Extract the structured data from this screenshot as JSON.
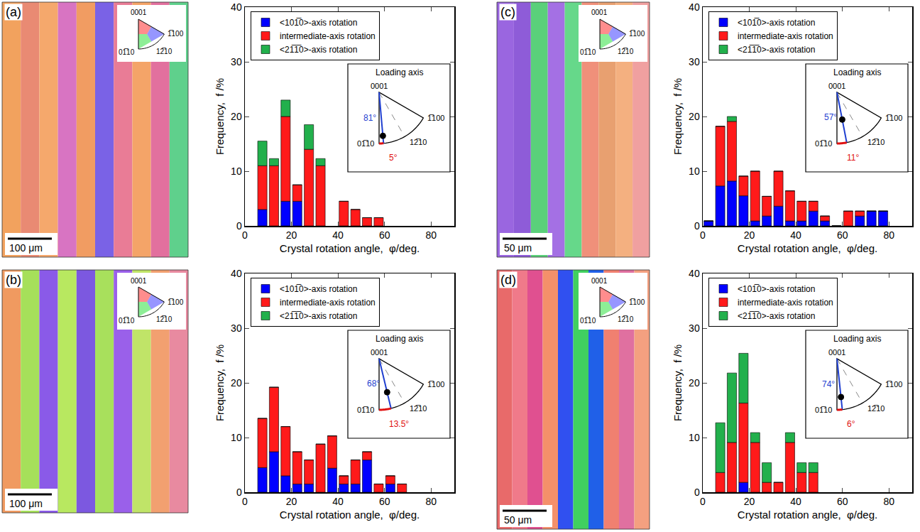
{
  "chart_data": [
    {
      "panel": "(a)",
      "type": "bar",
      "stacked": true,
      "grid": false,
      "legend": "upper left",
      "x_label": "Crystal rotation angle,  φ/deg.",
      "y_label": "Frequency,  f /%",
      "xlim": [
        0,
        90
      ],
      "xticks": [
        0,
        20,
        40,
        60,
        80
      ],
      "ylim": [
        0,
        40
      ],
      "yticks": [
        0,
        10,
        20,
        30,
        40
      ],
      "x": [
        7.5,
        12.5,
        17.5,
        22.5,
        27.5,
        32.5,
        42.5,
        47.5,
        52.5,
        57.5
      ],
      "series": [
        {
          "name": "<101̅0>-axis rotation",
          "color": "#0000ff",
          "values": [
            3,
            0,
            4.5,
            4.5,
            0,
            0,
            0,
            0,
            0,
            0
          ]
        },
        {
          "name": "intermediate-axis rotation",
          "color": "#ff1a1a",
          "values": [
            8,
            11,
            15.5,
            3,
            14,
            11,
            4.5,
            3,
            1.5,
            1.5
          ]
        },
        {
          "name": "<21̅1̅0>-axis rotation",
          "color": "#22b04c",
          "values": [
            4.5,
            1.3,
            3,
            0,
            4.5,
            1.3,
            0,
            0,
            0,
            0
          ]
        }
      ],
      "map": {
        "scale_bar": "100 μm",
        "color_key": [
          "0001",
          "1̅100",
          "01̅10",
          "12̅10"
        ]
      },
      "inset": {
        "title": "Loading axis",
        "labels": [
          "0001",
          "1̅100",
          "01̅10",
          "12̅10"
        ],
        "polar_angle": {
          "value": 81,
          "label": "81°"
        },
        "azimuth_angle": {
          "value": 5,
          "label": "5°"
        }
      }
    },
    {
      "panel": "(b)",
      "type": "bar",
      "stacked": true,
      "grid": false,
      "legend": "upper left",
      "x_label": "Crystal rotation angle,  φ/deg.",
      "y_label": "Frequency,  f /%",
      "xlim": [
        0,
        90
      ],
      "xticks": [
        0,
        20,
        40,
        60,
        80
      ],
      "ylim": [
        0,
        40
      ],
      "yticks": [
        0,
        10,
        20,
        30,
        40
      ],
      "x": [
        7.5,
        12.5,
        17.5,
        22.5,
        27.5,
        32.5,
        37.5,
        42.5,
        47.5,
        52.5,
        57.5,
        62.5,
        67.5
      ],
      "series": [
        {
          "name": "<101̅0>-axis rotation",
          "color": "#0000ff",
          "values": [
            4.5,
            7.4,
            3,
            1.5,
            1.5,
            0,
            4.4,
            1.5,
            1.5,
            5.9,
            0,
            1.5,
            0
          ]
        },
        {
          "name": "intermediate-axis rotation",
          "color": "#ff1a1a",
          "values": [
            9,
            11.8,
            9,
            5.9,
            4.4,
            8.8,
            5.9,
            1.5,
            4.4,
            1.5,
            1.5,
            1.5,
            1.5
          ]
        },
        {
          "name": "<21̅1̅0>-axis rotation",
          "color": "#22b04c",
          "values": [
            0,
            0,
            0,
            0,
            0,
            0,
            0,
            0,
            0,
            0,
            0,
            0,
            0
          ]
        }
      ],
      "map": {
        "scale_bar": "100 μm",
        "color_key": [
          "0001",
          "1̅100",
          "01̅10",
          "12̅10"
        ]
      },
      "inset": {
        "title": "Loading axis",
        "labels": [
          "0001",
          "1̅100",
          "01̅10",
          "12̅10"
        ],
        "polar_angle": {
          "value": 68,
          "label": "68°"
        },
        "azimuth_angle": {
          "value": 13.5,
          "label": "13.5°"
        }
      }
    },
    {
      "panel": "(c)",
      "type": "bar",
      "stacked": true,
      "grid": false,
      "legend": "upper left",
      "x_label": "Crystal rotation angle,  φ/deg.",
      "y_label": "Frequency,  f /%",
      "xlim": [
        0,
        90
      ],
      "xticks": [
        0,
        20,
        40,
        60,
        80
      ],
      "ylim": [
        0,
        40
      ],
      "yticks": [
        0,
        10,
        20,
        30,
        40
      ],
      "x": [
        2.5,
        7.5,
        12.5,
        17.5,
        22.5,
        27.5,
        32.5,
        37.5,
        42.5,
        47.5,
        52.5,
        57.5,
        62.5,
        67.5,
        72.5,
        77.5
      ],
      "series": [
        {
          "name": "<101̅0>-axis rotation",
          "color": "#0000ff",
          "values": [
            0.9,
            7.3,
            8.2,
            5.5,
            0.9,
            1.8,
            3.6,
            0.9,
            0.9,
            2.7,
            0.9,
            0,
            0,
            1.8,
            2.7,
            2.7
          ]
        },
        {
          "name": "intermediate-axis rotation",
          "color": "#ff1a1a",
          "values": [
            0,
            10.9,
            10.9,
            3.6,
            9.1,
            3.6,
            6.4,
            5.5,
            3.6,
            1.8,
            0.9,
            0,
            2.7,
            0.9,
            0,
            0
          ]
        },
        {
          "name": "<21̅1̅0>-axis rotation",
          "color": "#22b04c",
          "values": [
            0,
            0,
            0.9,
            0,
            0,
            0,
            0,
            0,
            0,
            0,
            0,
            0,
            0,
            0,
            0,
            0
          ]
        }
      ],
      "map": {
        "scale_bar": "50 μm",
        "color_key": [
          "0001",
          "1̅100",
          "01̅10",
          "12̅10"
        ]
      },
      "inset": {
        "title": "Loading axis",
        "labels": [
          "0001",
          "1̅100",
          "01̅10",
          "12̅10"
        ],
        "polar_angle": {
          "value": 57,
          "label": "57°"
        },
        "azimuth_angle": {
          "value": 11,
          "label": "11°"
        }
      }
    },
    {
      "panel": "(d)",
      "type": "bar",
      "stacked": true,
      "grid": false,
      "legend": "upper left",
      "x_label": "Crystal rotation angle,  φ/deg.",
      "y_label": "Frequency,  f /%",
      "xlim": [
        0,
        90
      ],
      "xticks": [
        0,
        20,
        40,
        60,
        80
      ],
      "ylim": [
        0,
        40
      ],
      "yticks": [
        0,
        10,
        20,
        30,
        40
      ],
      "x": [
        7.5,
        12.5,
        17.5,
        22.5,
        27.5,
        32.5,
        37.5,
        42.5,
        47.5
      ],
      "series": [
        {
          "name": "<101̅0>-axis rotation",
          "color": "#0000ff",
          "values": [
            0,
            0,
            1.8,
            0,
            0,
            0,
            0,
            0,
            0
          ]
        },
        {
          "name": "intermediate-axis rotation",
          "color": "#ff1a1a",
          "values": [
            3.6,
            9.1,
            14.5,
            9.1,
            1.8,
            1.8,
            9.1,
            3.6,
            3.6
          ]
        },
        {
          "name": "<21̅1̅0>-axis rotation",
          "color": "#22b04c",
          "values": [
            9.1,
            12.7,
            9.1,
            1.8,
            3.6,
            0,
            1.8,
            1.8,
            1.8
          ]
        }
      ],
      "map": {
        "scale_bar": "50 μm",
        "color_key": [
          "0001",
          "1̅100",
          "01̅10",
          "12̅10"
        ]
      },
      "inset": {
        "title": "Loading axis",
        "labels": [
          "0001",
          "1̅100",
          "01̅10",
          "12̅10"
        ],
        "polar_angle": {
          "value": 74,
          "label": "74°"
        },
        "azimuth_angle": {
          "value": 6,
          "label": "6°"
        }
      }
    }
  ]
}
